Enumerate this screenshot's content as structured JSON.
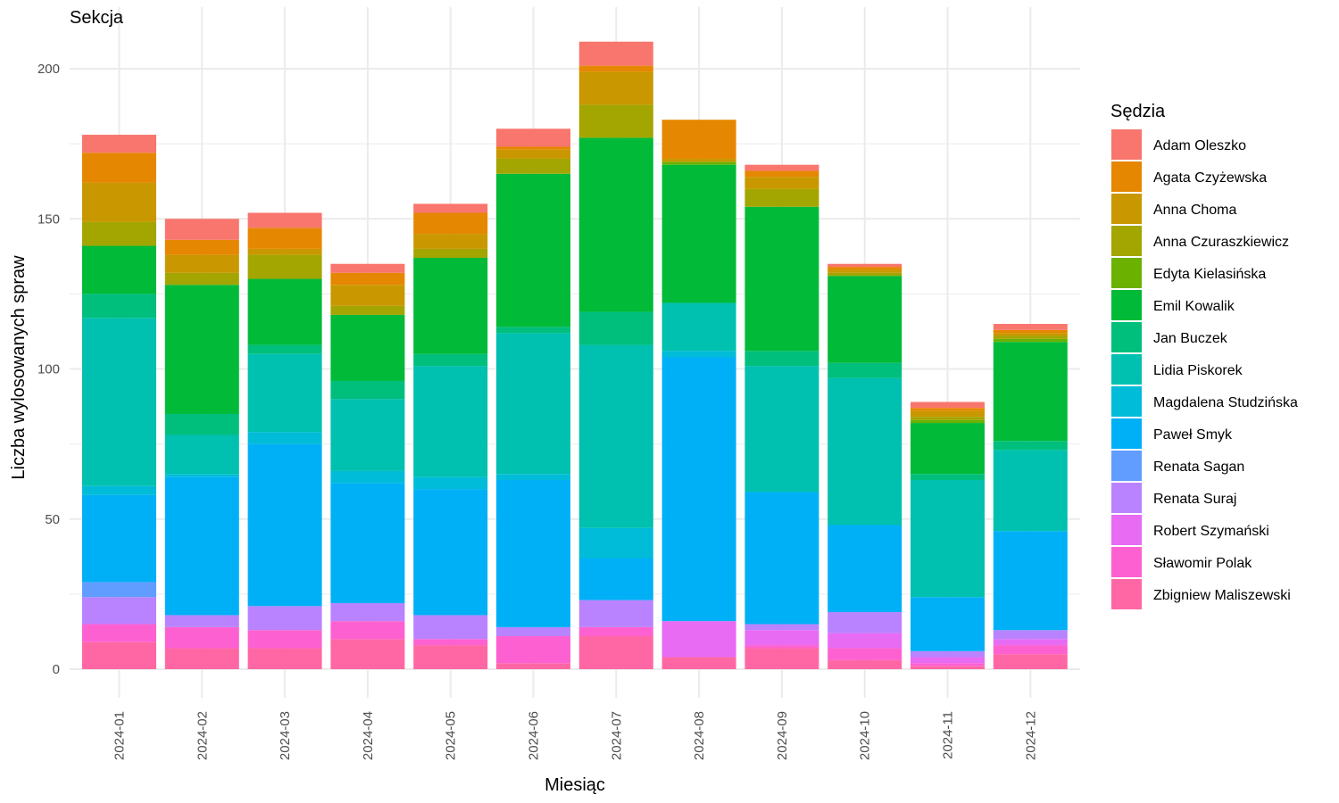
{
  "chart_data": {
    "type": "bar",
    "stacked": true,
    "title": "Sekcja",
    "xlabel": "Miesiąc",
    "ylabel": "Liczba wylosowanych spraw",
    "legend_title": "Sędzia",
    "legend_position": "right",
    "grid": true,
    "ylim": [
      0,
      210
    ],
    "yticks": [
      0,
      50,
      100,
      150,
      200
    ],
    "categories": [
      "2024-01",
      "2024-02",
      "2024-03",
      "2024-04",
      "2024-05",
      "2024-06",
      "2024-07",
      "2024-08",
      "2024-09",
      "2024-10",
      "2024-11",
      "2024-12"
    ],
    "series": [
      {
        "name": "Adam Oleszko",
        "color": "#F8766D",
        "values": [
          6,
          7,
          5,
          3,
          3,
          6,
          8,
          0,
          2,
          1,
          2,
          2
        ]
      },
      {
        "name": "Agata Czyżewska",
        "color": "#E58700",
        "values": [
          10,
          5,
          7,
          4,
          7,
          1,
          2,
          13,
          2,
          1,
          1,
          1
        ]
      },
      {
        "name": "Anna Choma",
        "color": "#C99800",
        "values": [
          13,
          6,
          2,
          7,
          5,
          3,
          11,
          1,
          4,
          1,
          2,
          1
        ]
      },
      {
        "name": "Anna Czuraszkiewicz",
        "color": "#A3A500",
        "values": [
          8,
          4,
          8,
          3,
          3,
          5,
          11,
          0,
          6,
          1,
          1,
          1
        ]
      },
      {
        "name": "Edyta Kielasińska",
        "color": "#6BB100",
        "values": [
          0,
          0,
          0,
          0,
          0,
          0,
          0,
          1,
          0,
          0,
          1,
          1
        ]
      },
      {
        "name": "Emil Kowalik",
        "color": "#00BA38",
        "values": [
          16,
          43,
          22,
          22,
          32,
          51,
          58,
          46,
          48,
          29,
          17,
          33
        ]
      },
      {
        "name": "Jan Buczek",
        "color": "#00BF7D",
        "values": [
          8,
          7,
          3,
          6,
          4,
          2,
          11,
          0,
          5,
          5,
          2,
          3
        ]
      },
      {
        "name": "Lidia Piskorek",
        "color": "#00C0AF",
        "values": [
          56,
          13,
          26,
          24,
          37,
          47,
          61,
          16,
          42,
          49,
          39,
          27
        ]
      },
      {
        "name": "Magdalena Studzińska",
        "color": "#00BCD8",
        "values": [
          3,
          1,
          4,
          4,
          4,
          2,
          10,
          2,
          0,
          0,
          0,
          0
        ]
      },
      {
        "name": "Paweł Smyk",
        "color": "#00B0F6",
        "values": [
          29,
          46,
          54,
          40,
          42,
          49,
          14,
          88,
          44,
          29,
          18,
          33
        ]
      },
      {
        "name": "Renata Sagan",
        "color": "#619CFF",
        "values": [
          5,
          0,
          0,
          0,
          0,
          0,
          0,
          0,
          0,
          0,
          0,
          0
        ]
      },
      {
        "name": "Renata Suraj",
        "color": "#B983FF",
        "values": [
          9,
          4,
          8,
          6,
          8,
          3,
          9,
          0,
          2,
          7,
          2,
          3
        ]
      },
      {
        "name": "Robert Szymański",
        "color": "#E76BF3",
        "values": [
          0,
          0,
          0,
          0,
          0,
          0,
          0,
          12,
          5,
          5,
          2,
          2
        ]
      },
      {
        "name": "Sławomir Polak",
        "color": "#FD61D1",
        "values": [
          6,
          7,
          6,
          6,
          2,
          9,
          3,
          0,
          1,
          4,
          1,
          3
        ]
      },
      {
        "name": "Zbigniew Maliszewski",
        "color": "#FF67A4",
        "values": [
          9,
          7,
          7,
          10,
          8,
          2,
          11,
          4,
          7,
          3,
          1,
          5
        ]
      }
    ]
  }
}
